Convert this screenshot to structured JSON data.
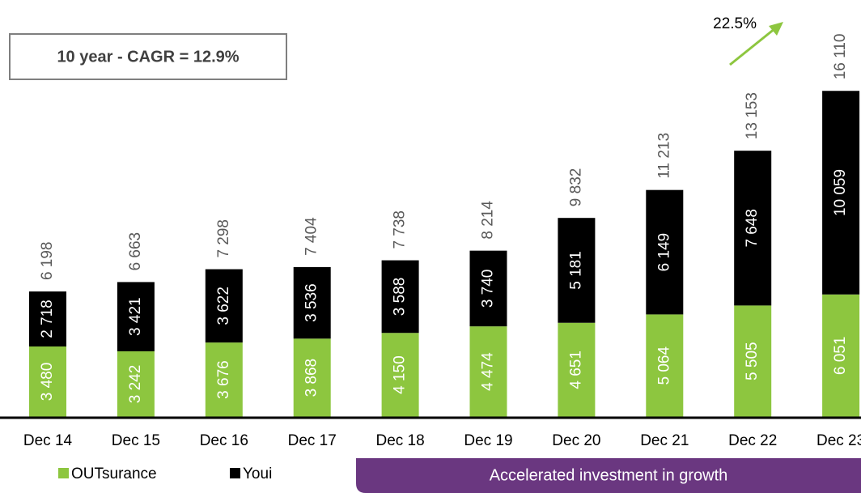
{
  "chart_data": {
    "type": "stacked_bar",
    "annotations": {
      "cagr": "10 year - CAGR = 12.9%",
      "growth": "22.5%",
      "banner": "Accelerated investment in growth"
    },
    "categories": [
      "Dec 14",
      "Dec 15",
      "Dec 16",
      "Dec 17",
      "Dec 18",
      "Dec 19",
      "Dec 20",
      "Dec 21",
      "Dec 22",
      "Dec 23"
    ],
    "series": [
      {
        "name": "OUTsurance",
        "color": "#8dc63f",
        "values": [
          3480,
          3242,
          3676,
          3868,
          4150,
          4474,
          4651,
          5064,
          5505,
          6051
        ],
        "value_labels": [
          "3 480",
          "3 242",
          "3 676",
          "3 868",
          "4 150",
          "4 474",
          "4 651",
          "5 064",
          "5 505",
          "6 051"
        ]
      },
      {
        "name": "Youi",
        "color": "#000000",
        "values": [
          2718,
          3421,
          3622,
          3536,
          3588,
          3740,
          5181,
          6149,
          7648,
          10059
        ],
        "value_labels": [
          "2 718",
          "3 421",
          "3 622",
          "3 536",
          "3 588",
          "3 740",
          "5 181",
          "6 149",
          "7 648",
          "10 059"
        ]
      }
    ],
    "totals": [
      6198,
      6663,
      7298,
      7404,
      7738,
      8214,
      9832,
      11213,
      13153,
      16110
    ],
    "total_labels": [
      "6 198",
      "6 663",
      "7 298",
      "7 404",
      "7 738",
      "8 214",
      "9 832",
      "11 213",
      "13 153",
      "16 110"
    ],
    "ylim": [
      0,
      20000
    ]
  }
}
